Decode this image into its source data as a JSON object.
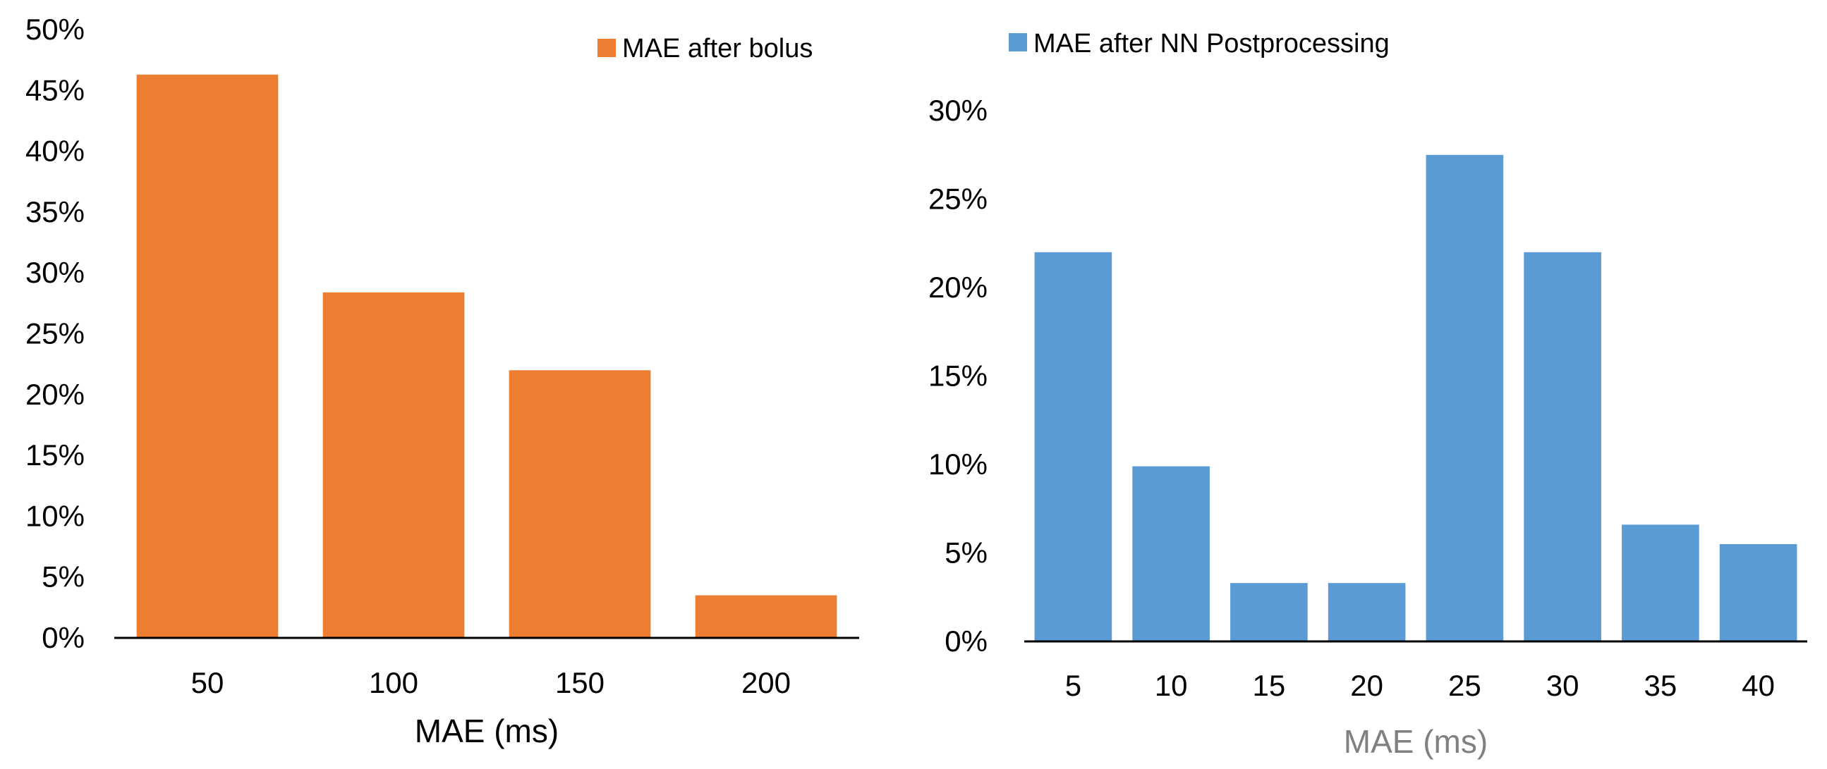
{
  "chart_data": [
    {
      "type": "bar",
      "categories": [
        "50",
        "100",
        "150",
        "200"
      ],
      "series": [
        {
          "name": "MAE after bolus",
          "values": [
            0.463,
            0.284,
            0.22,
            0.035
          ],
          "color": "#ED7D31"
        }
      ],
      "xlabel": "MAE (ms)",
      "ylabel": "",
      "ylim": [
        0,
        0.5
      ],
      "yticks": [
        0,
        0.05,
        0.1,
        0.15,
        0.2,
        0.25,
        0.3,
        0.35,
        0.4,
        0.45,
        0.5
      ],
      "ytick_labels": [
        "0%",
        "5%",
        "10%",
        "15%",
        "20%",
        "25%",
        "30%",
        "35%",
        "40%",
        "45%",
        "50%"
      ],
      "xlabel_color": "#000000",
      "grid": false,
      "legend_position": "top-right"
    },
    {
      "type": "bar",
      "categories": [
        "5",
        "10",
        "15",
        "20",
        "25",
        "30",
        "35",
        "40"
      ],
      "series": [
        {
          "name": "MAE after NN Postprocessing",
          "values": [
            0.22,
            0.099,
            0.033,
            0.033,
            0.275,
            0.22,
            0.066,
            0.055
          ],
          "color": "#5B9BD5"
        }
      ],
      "xlabel": "MAE (ms)",
      "ylabel": "",
      "ylim": [
        0,
        0.3
      ],
      "yticks": [
        0,
        0.05,
        0.1,
        0.15,
        0.2,
        0.25,
        0.3
      ],
      "ytick_labels": [
        "0%",
        "5%",
        "10%",
        "15%",
        "20%",
        "25%",
        "30%"
      ],
      "xlabel_color": "#808080",
      "grid": false,
      "legend_position": "top-left"
    }
  ]
}
